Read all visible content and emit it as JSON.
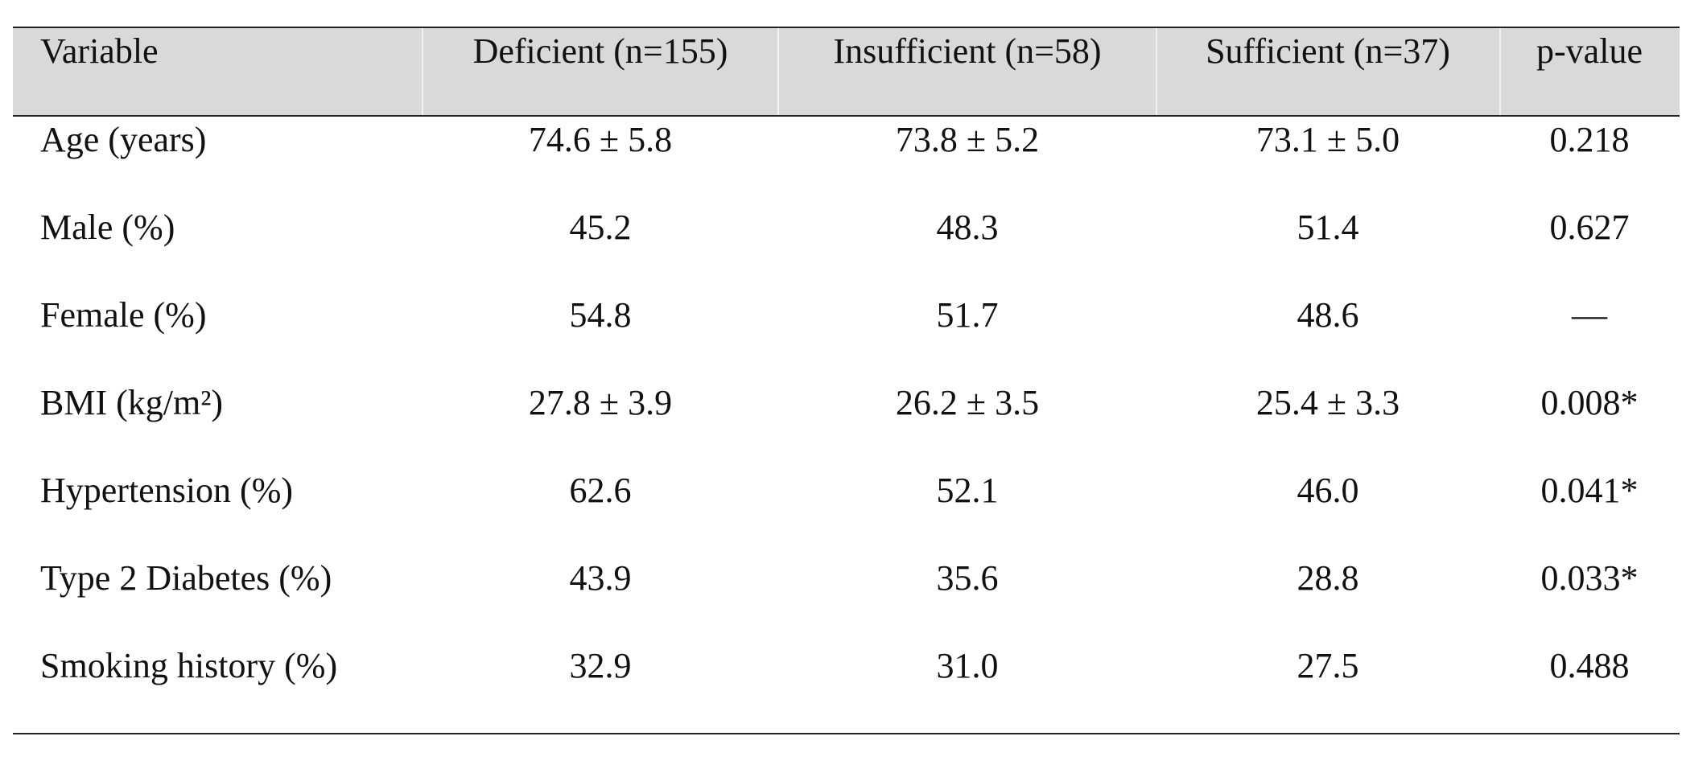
{
  "table": {
    "header": [
      "Variable",
      "Deficient (n=155)",
      "Insufficient (n=58)",
      "Sufficient (n=37)",
      "p-value"
    ],
    "rows": [
      [
        "Age (years)",
        "74.6 ± 5.8",
        "73.8 ± 5.2",
        "73.1 ± 5.0",
        "0.218"
      ],
      [
        "Male (%)",
        "45.2",
        "48.3",
        "51.4",
        "0.627"
      ],
      [
        "Female (%)",
        "54.8",
        "51.7",
        "48.6",
        "—"
      ],
      [
        "BMI (kg/m²)",
        "27.8 ± 3.9",
        "26.2 ± 3.5",
        "25.4 ± 3.3",
        "0.008*"
      ],
      [
        "Hypertension (%)",
        "62.6",
        "52.1",
        "46.0",
        "0.041*"
      ],
      [
        "Type 2 Diabetes (%)",
        "43.9",
        "35.6",
        "28.8",
        "0.033*"
      ],
      [
        "Smoking history (%)",
        "32.9",
        "31.0",
        "27.5",
        "0.488"
      ]
    ]
  }
}
